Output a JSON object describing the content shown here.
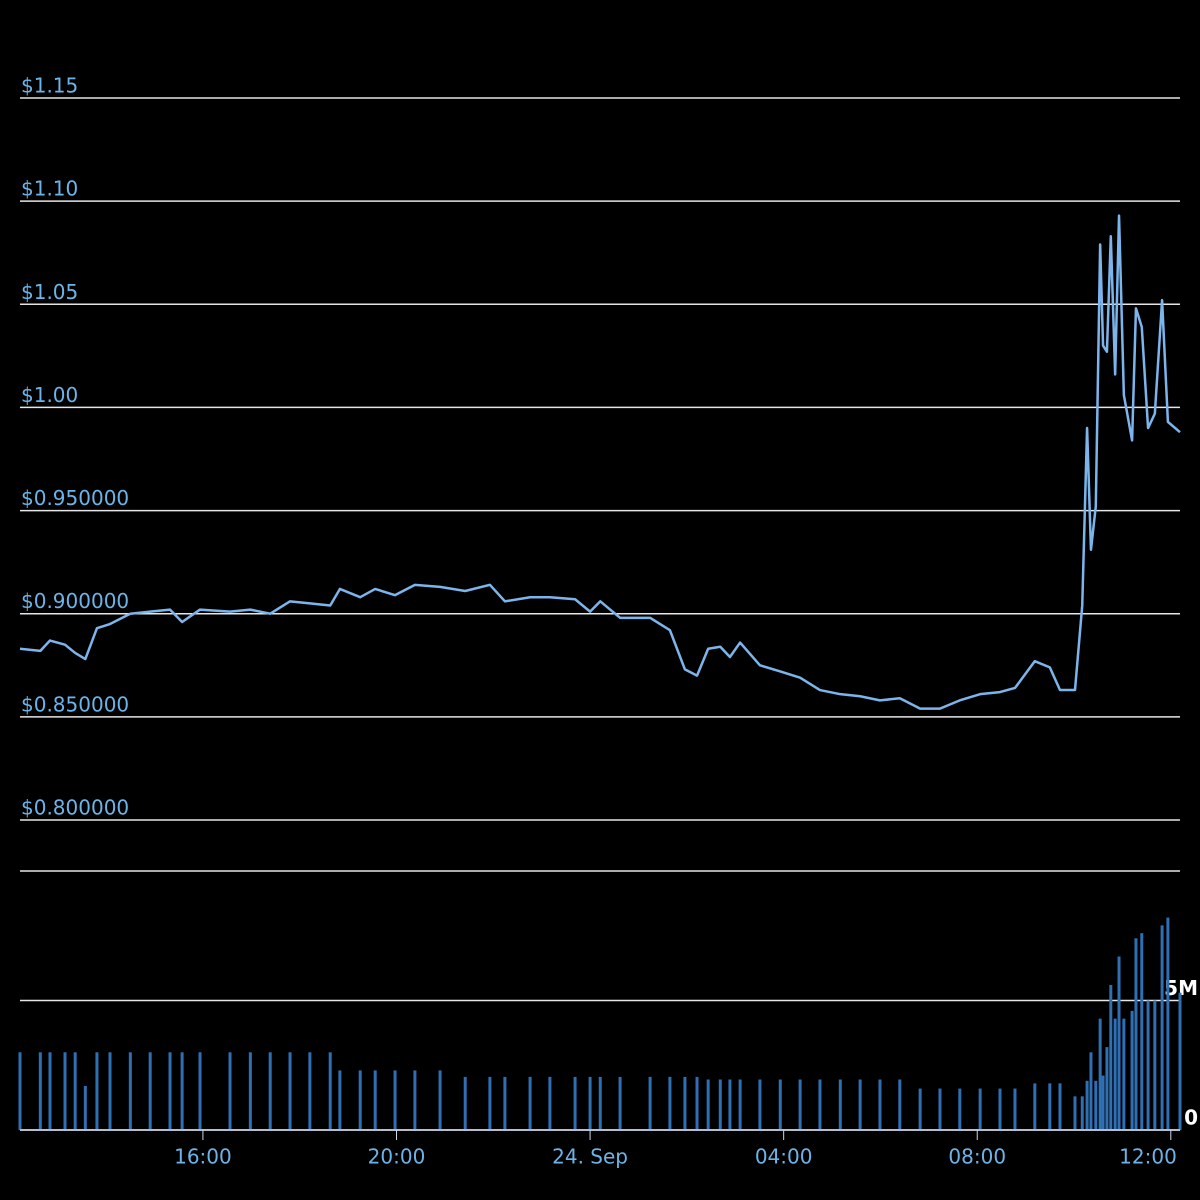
{
  "chart_data": [
    {
      "type": "line",
      "color": "#7cb5ec",
      "x": [
        -11.78,
        -11.36,
        -11.16,
        -10.85,
        -10.64,
        -10.43,
        -10.19,
        -9.92,
        -9.5,
        -9.09,
        -8.68,
        -8.43,
        -8.06,
        -7.44,
        -7.02,
        -6.61,
        -6.2,
        -5.79,
        -5.37,
        -5.17,
        -4.75,
        -4.44,
        -4.03,
        -3.62,
        -3.1,
        -2.58,
        -2.07,
        -1.76,
        -1.24,
        -0.83,
        -0.31,
        0,
        0.21,
        0.62,
        1.24,
        1.65,
        1.96,
        2.21,
        2.44,
        2.69,
        2.89,
        3.1,
        3.51,
        3.93,
        4.34,
        4.75,
        5.17,
        5.58,
        5.99,
        6.4,
        6.82,
        7.23,
        7.64,
        8.06,
        8.47,
        8.78,
        9.19,
        9.5,
        9.71,
        10.02,
        10.17,
        10.27,
        10.35,
        10.45,
        10.54,
        10.6,
        10.68,
        10.76,
        10.85,
        10.93,
        11.03,
        11.2,
        11.28,
        11.4,
        11.53,
        11.67,
        11.82,
        11.94,
        12.19
      ],
      "values": [
        0.883,
        0.882,
        0.887,
        0.885,
        0.881,
        0.878,
        0.893,
        0.895,
        0.9,
        0.901,
        0.902,
        0.896,
        0.902,
        0.901,
        0.902,
        0.9,
        0.906,
        0.905,
        0.904,
        0.912,
        0.908,
        0.912,
        0.909,
        0.914,
        0.913,
        0.911,
        0.914,
        0.906,
        0.908,
        0.908,
        0.907,
        0.901,
        0.906,
        0.898,
        0.898,
        0.892,
        0.873,
        0.87,
        0.883,
        0.884,
        0.879,
        0.886,
        0.875,
        0.872,
        0.869,
        0.863,
        0.861,
        0.86,
        0.858,
        0.859,
        0.854,
        0.854,
        0.858,
        0.861,
        0.862,
        0.864,
        0.877,
        0.874,
        0.863,
        0.863,
        0.904,
        0.99,
        0.931,
        0.952,
        1.079,
        1.03,
        1.027,
        1.083,
        1.016,
        1.093,
        1.006,
        0.984,
        1.048,
        1.039,
        0.99,
        0.997,
        1.052,
        0.993,
        0.988
      ],
      "xlim": [
        -11.78,
        12.19
      ],
      "ylim": [
        0.8,
        1.15
      ],
      "yticks": [
        {
          "value": 0.8,
          "label": "$0.800000"
        },
        {
          "value": 0.85,
          "label": "$0.850000"
        },
        {
          "value": 0.9,
          "label": "$0.900000"
        },
        {
          "value": 0.95,
          "label": "$0.950000"
        },
        {
          "value": 1.0,
          "label": "$1.00"
        },
        {
          "value": 1.05,
          "label": "$1.05"
        },
        {
          "value": 1.1,
          "label": "$1.10"
        },
        {
          "value": 1.15,
          "label": "$1.15"
        }
      ],
      "grid": true
    },
    {
      "type": "bar",
      "color": "#2f6fb4",
      "x": [
        -11.78,
        -11.36,
        -11.16,
        -10.85,
        -10.64,
        -10.43,
        -10.19,
        -9.92,
        -9.5,
        -9.09,
        -8.68,
        -8.43,
        -8.06,
        -7.44,
        -7.02,
        -6.61,
        -6.2,
        -5.79,
        -5.37,
        -5.17,
        -4.75,
        -4.44,
        -4.03,
        -3.62,
        -3.1,
        -2.58,
        -2.07,
        -1.76,
        -1.24,
        -0.83,
        -0.31,
        0,
        0.21,
        0.62,
        1.24,
        1.65,
        1.96,
        2.21,
        2.44,
        2.69,
        2.89,
        3.1,
        3.51,
        3.93,
        4.34,
        4.75,
        5.17,
        5.58,
        5.99,
        6.4,
        6.82,
        7.23,
        7.64,
        8.06,
        8.47,
        8.78,
        9.19,
        9.5,
        9.71,
        10.02,
        10.17,
        10.27,
        10.35,
        10.45,
        10.54,
        10.6,
        10.68,
        10.76,
        10.85,
        10.93,
        11.03,
        11.2,
        11.28,
        11.4,
        11.53,
        11.67,
        11.82,
        11.94,
        12.19
      ],
      "values": [
        3000000,
        3000000,
        3000000,
        3000000,
        3000000,
        1700000,
        3000000,
        3000000,
        3000000,
        3000000,
        3000000,
        3000000,
        3000000,
        3000000,
        3000000,
        3000000,
        3000000,
        3000000,
        3000000,
        2300000,
        2300000,
        2300000,
        2300000,
        2300000,
        2300000,
        2050000,
        2050000,
        2050000,
        2050000,
        2050000,
        2050000,
        2050000,
        2050000,
        2050000,
        2050000,
        2050000,
        2050000,
        2050000,
        1950000,
        1950000,
        1950000,
        1950000,
        1950000,
        1950000,
        1950000,
        1950000,
        1950000,
        1950000,
        1950000,
        1950000,
        1600000,
        1600000,
        1600000,
        1600000,
        1600000,
        1600000,
        1800000,
        1800000,
        1800000,
        1300000,
        1300000,
        1900000,
        3000000,
        1900000,
        4300000,
        2100000,
        3200000,
        5600000,
        4300000,
        6700000,
        4300000,
        4600000,
        7400000,
        7600000,
        5000000,
        5000000,
        7900000,
        8200000,
        5300000
      ],
      "xlim": [
        -11.78,
        12.19
      ],
      "xticks": [
        {
          "value": -8,
          "label": "16:00"
        },
        {
          "value": -4,
          "label": "20:00"
        },
        {
          "value": 0,
          "label": "24. Sep"
        },
        {
          "value": 4,
          "label": "04:00"
        },
        {
          "value": 8,
          "label": "08:00"
        },
        {
          "value": 12,
          "label": "12:00"
        }
      ],
      "ylim": [
        0,
        10000000
      ],
      "yticks": [
        {
          "value": 0,
          "label": "0"
        },
        {
          "value": 5000000,
          "label": "5M"
        }
      ],
      "grid": true
    }
  ]
}
